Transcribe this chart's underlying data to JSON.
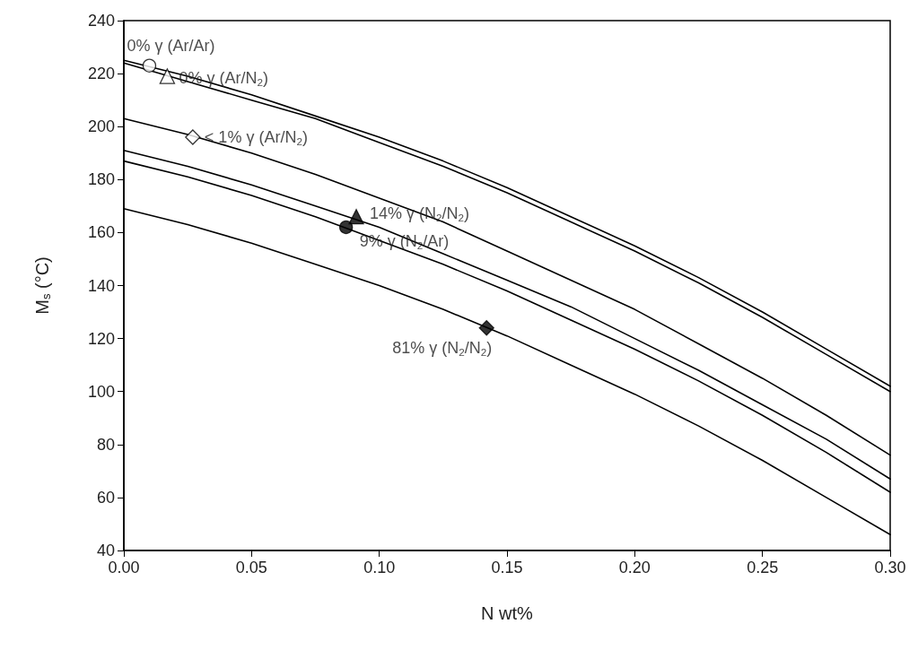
{
  "chart_data": {
    "type": "line",
    "xlabel": "N wt%",
    "ylabel": "M$_{s}$ (°C)",
    "xlim": [
      0,
      0.3
    ],
    "xticks": [
      {
        "value": 0,
        "label": "0.00"
      },
      {
        "value": 0.05,
        "label": "0.05"
      },
      {
        "value": 0.1,
        "label": "0.10"
      },
      {
        "value": 0.15,
        "label": "0.15"
      },
      {
        "value": 0.2,
        "label": "0.20"
      },
      {
        "value": 0.25,
        "label": "0.25"
      },
      {
        "value": 0.3,
        "label": "0.30"
      }
    ],
    "ylim": [
      40,
      240
    ],
    "yticks": [
      40,
      60,
      80,
      100,
      120,
      140,
      160,
      180,
      200,
      220,
      240
    ],
    "grid": false,
    "marker": "none",
    "line_style": "solid",
    "x": [
      0,
      0.025,
      0.05,
      0.075,
      0.1,
      0.125,
      0.15,
      0.175,
      0.2,
      0.225,
      0.25,
      0.275,
      0.3
    ],
    "series": [
      {
        "color": "#000000",
        "values": [
          225,
          219,
          212,
          204,
          196,
          187,
          177,
          166,
          155,
          143,
          130,
          116,
          102
        ]
      },
      {
        "color": "#000000",
        "values": [
          224,
          217,
          210,
          203,
          194,
          185,
          175,
          164,
          153,
          141,
          128,
          114,
          100
        ]
      },
      {
        "color": "#000000",
        "values": [
          203,
          197,
          190,
          182,
          173,
          164,
          153,
          142,
          131,
          118,
          105,
          91,
          76
        ]
      },
      {
        "color": "#000000",
        "values": [
          191,
          185,
          178,
          170,
          162,
          152,
          142,
          132,
          120,
          108,
          95,
          82,
          67
        ]
      },
      {
        "color": "#000000",
        "values": [
          187,
          181,
          174,
          166,
          157,
          148,
          138,
          127,
          116,
          104,
          91,
          77,
          62
        ]
      },
      {
        "color": "#000000",
        "values": [
          169,
          163,
          156,
          148,
          140,
          131,
          121,
          110,
          99,
          87,
          74,
          60,
          46
        ]
      },
      {
        "type": "scatter",
        "marker": "circle",
        "color": "#ffffff",
        "x": [
          0.01
        ],
        "values": [
          223
        ]
      },
      {
        "type": "scatter",
        "marker": "triangle",
        "color": "#ffffff",
        "x": [
          0.017
        ],
        "values": [
          219
        ]
      },
      {
        "type": "scatter",
        "marker": "diamond",
        "color": "#ffffff",
        "x": [
          0.027
        ],
        "values": [
          196
        ]
      },
      {
        "type": "scatter",
        "marker": "triangle",
        "color": "#000000",
        "x": [
          0.091
        ],
        "values": [
          166
        ]
      },
      {
        "type": "scatter",
        "marker": "circle",
        "color": "#000000",
        "x": [
          0.087
        ],
        "values": [
          162
        ]
      },
      {
        "type": "scatter",
        "marker": "diamond",
        "color": "#000000",
        "x": [
          0.142
        ],
        "values": [
          124
        ]
      }
    ],
    "annotations": [
      {
        "text": "0% γ (Ar/Ar)",
        "x": 0.01,
        "y": 223
      },
      {
        "text": "0% γ (Ar/N$_{2}$)",
        "x": 0.017,
        "y": 219
      },
      {
        "text": "< 1% γ (Ar/N$_{2}$)",
        "x": 0.027,
        "y": 196
      },
      {
        "text": "14% γ (N$_{2}$/N$_{2}$)",
        "x": 0.091,
        "y": 166
      },
      {
        "text": "9% γ (N$_{2}$/Ar)",
        "x": 0.087,
        "y": 162
      },
      {
        "text": "81% γ (N$_{2}$/N$_{2}$)",
        "x": 0.142,
        "y": 124
      }
    ]
  }
}
